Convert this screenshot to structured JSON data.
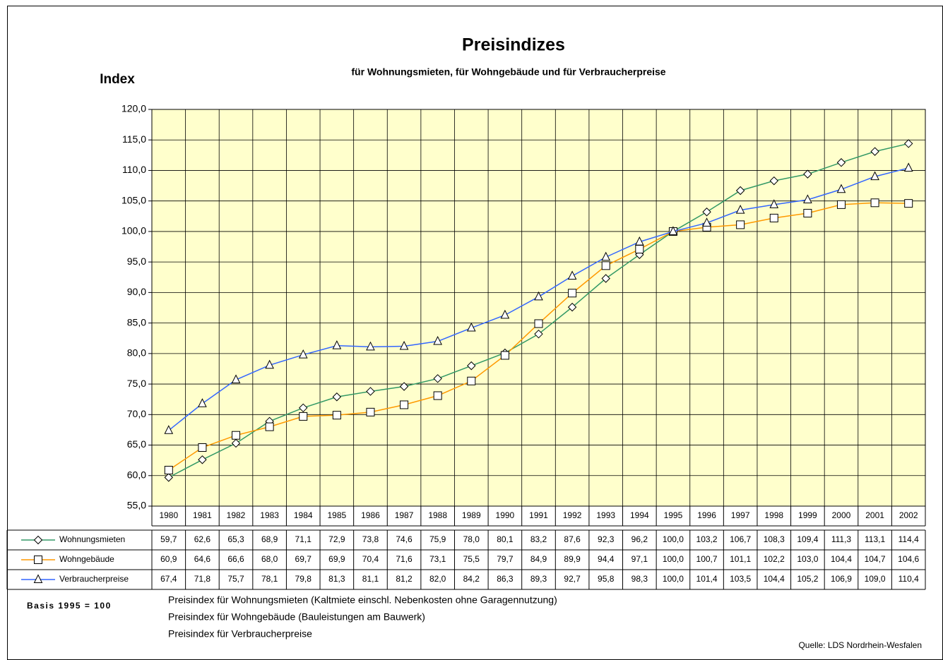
{
  "chart_data": {
    "type": "line",
    "title": "Preisindizes",
    "subtitle": "für Wohnungsmieten, für Wohngebäude und für Verbraucherpreise",
    "y_label": "Index",
    "categories": [
      "1980",
      "1981",
      "1982",
      "1983",
      "1984",
      "1985",
      "1986",
      "1987",
      "1988",
      "1989",
      "1990",
      "1991",
      "1992",
      "1993",
      "1994",
      "1995",
      "1996",
      "1997",
      "1998",
      "1999",
      "2000",
      "2001",
      "2002"
    ],
    "series": [
      {
        "name": "Wohnungsmieten",
        "color": "#339966",
        "marker": "diamond",
        "values": [
          59.7,
          62.6,
          65.3,
          68.9,
          71.1,
          72.9,
          73.8,
          74.6,
          75.9,
          78.0,
          80.1,
          83.2,
          87.6,
          92.3,
          96.2,
          100.0,
          103.2,
          106.7,
          108.3,
          109.4,
          111.3,
          113.1,
          114.4
        ],
        "value_labels": [
          "59,7",
          "62,6",
          "65,3",
          "68,9",
          "71,1",
          "72,9",
          "73,8",
          "74,6",
          "75,9",
          "78,0",
          "80,1",
          "83,2",
          "87,6",
          "92,3",
          "96,2",
          "100,0",
          "103,2",
          "106,7",
          "108,3",
          "109,4",
          "111,3",
          "113,1",
          "114,4"
        ]
      },
      {
        "name": "Wohngebäude",
        "color": "#ff9900",
        "marker": "square",
        "values": [
          60.9,
          64.6,
          66.6,
          68.0,
          69.7,
          69.9,
          70.4,
          71.6,
          73.1,
          75.5,
          79.7,
          84.9,
          89.9,
          94.4,
          97.1,
          100.0,
          100.7,
          101.1,
          102.2,
          103.0,
          104.4,
          104.7,
          104.6
        ],
        "value_labels": [
          "60,9",
          "64,6",
          "66,6",
          "68,0",
          "69,7",
          "69,9",
          "70,4",
          "71,6",
          "73,1",
          "75,5",
          "79,7",
          "84,9",
          "89,9",
          "94,4",
          "97,1",
          "100,0",
          "100,7",
          "101,1",
          "102,2",
          "103,0",
          "104,4",
          "104,7",
          "104,6"
        ]
      },
      {
        "name": "Verbraucherpreise",
        "color": "#3366ff",
        "marker": "triangle",
        "values": [
          67.4,
          71.8,
          75.7,
          78.1,
          79.8,
          81.3,
          81.1,
          81.2,
          82.0,
          84.2,
          86.3,
          89.3,
          92.7,
          95.8,
          98.3,
          100.0,
          101.4,
          103.5,
          104.4,
          105.2,
          106.9,
          109.0,
          110.4
        ],
        "value_labels": [
          "67,4",
          "71,8",
          "75,7",
          "78,1",
          "79,8",
          "81,3",
          "81,1",
          "81,2",
          "82,0",
          "84,2",
          "86,3",
          "89,3",
          "92,7",
          "95,8",
          "98,3",
          "100,0",
          "101,4",
          "103,5",
          "104,4",
          "105,2",
          "106,9",
          "109,0",
          "110,4"
        ]
      }
    ],
    "ylim": [
      55,
      120
    ],
    "yticks": [
      {
        "value": 55,
        "label": "55,0"
      },
      {
        "value": 60,
        "label": "60,0"
      },
      {
        "value": 65,
        "label": "65,0"
      },
      {
        "value": 70,
        "label": "70,0"
      },
      {
        "value": 75,
        "label": "75,0"
      },
      {
        "value": 80,
        "label": "80,0"
      },
      {
        "value": 85,
        "label": "85,0"
      },
      {
        "value": 90,
        "label": "90,0"
      },
      {
        "value": 95,
        "label": "95,0"
      },
      {
        "value": 100,
        "label": "100,0"
      },
      {
        "value": 105,
        "label": "105,0"
      },
      {
        "value": 110,
        "label": "110,0"
      },
      {
        "value": 115,
        "label": "115,0"
      },
      {
        "value": 120,
        "label": "120,0"
      }
    ],
    "grid": true,
    "plot_background": "#ffffcc",
    "basis": "Basis 1995 = 100",
    "notes": [
      "Preisindex für Wohnungsmieten (Kaltmiete einschl. Nebenkosten ohne Garagennutzung)",
      "Preisindex für Wohngebäude (Bauleistungen am Bauwerk)",
      "Preisindex für Verbraucherpreise"
    ],
    "source": "Quelle: LDS Nordrhein-Wesfalen"
  }
}
